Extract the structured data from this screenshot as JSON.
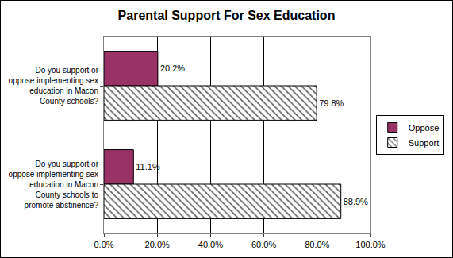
{
  "chart_data": {
    "type": "bar",
    "orientation": "horizontal",
    "title": "Parental Support For Sex Education",
    "categories": [
      "Do you support or oppose implementing sex education in Macon County schools?",
      "Do you support or oppose implementing sex education in Macon County schools to promote abstinence?"
    ],
    "series": [
      {
        "name": "Oppose",
        "color": "#993366",
        "values": [
          20.2,
          11.1
        ],
        "value_labels": [
          "20.2%",
          "11.1%"
        ]
      },
      {
        "name": "Support",
        "color": "#ffffff",
        "marker": "hatch",
        "values": [
          79.8,
          88.9
        ],
        "value_labels": [
          "79.8%",
          "88.9%"
        ]
      }
    ],
    "xlim": [
      0,
      100
    ],
    "xticks": [
      {
        "value": 0,
        "label": "0.0%"
      },
      {
        "value": 20,
        "label": "20.0%"
      },
      {
        "value": 40,
        "label": "40.0%"
      },
      {
        "value": 60,
        "label": "60.0%"
      },
      {
        "value": 80,
        "label": "80.0%"
      },
      {
        "value": 100,
        "label": "100.0%"
      }
    ],
    "grid": true,
    "legend": "right",
    "data_labels": true
  }
}
